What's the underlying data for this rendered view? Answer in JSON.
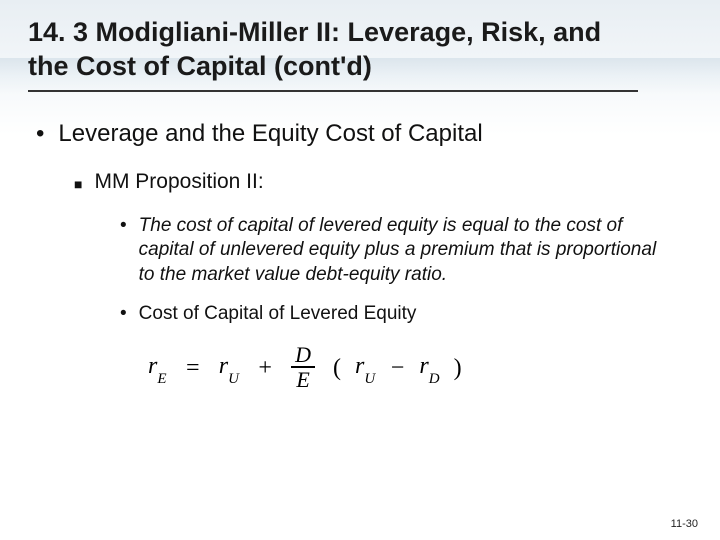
{
  "title": "14. 3 Modigliani-Miller II: Leverage, Risk, and the Cost of Capital (cont'd)",
  "level1": {
    "text": "Leverage and the Equity Cost of Capital"
  },
  "level2": {
    "text": "MM Proposition II:"
  },
  "level3a": {
    "text": "The cost of capital of levered equity is equal to the cost of capital of unlevered equity plus a premium that is proportional to the market value debt-equity ratio."
  },
  "level3b": {
    "text": "Cost of Capital of Levered Equity"
  },
  "formula": {
    "lhs_base": "r",
    "lhs_sub": "E",
    "eq": "=",
    "t1_base": "r",
    "t1_sub": "U",
    "plus": "+",
    "frac_num": "D",
    "frac_den": "E",
    "lp": "(",
    "t2_base": "r",
    "t2_sub": "U",
    "minus": "−",
    "t3_base": "r",
    "t3_sub": "D",
    "rp": ")"
  },
  "pageNumber": "11-30",
  "colors": {
    "text": "#111111",
    "underline": "#333333",
    "bg_top": "#e8eef3"
  }
}
